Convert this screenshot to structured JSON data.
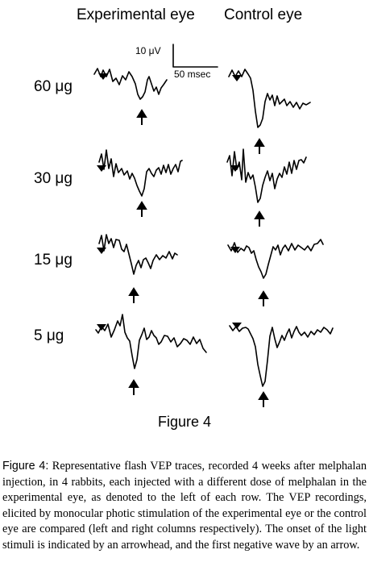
{
  "figure": {
    "col_left": "Experimental eye",
    "col_right": "Control eye",
    "scale": {
      "amplitude": "10 μV",
      "time": "50 msec"
    },
    "rows": [
      {
        "dose": "60 μg"
      },
      {
        "dose": "30 μg"
      },
      {
        "dose": "15 μg"
      },
      {
        "dose": "5 μg"
      }
    ],
    "label": "Figure 4"
  },
  "caption": {
    "label": "Figure 4:",
    "text": " Representative flash VEP traces, recorded 4 weeks after melphalan injection, in 4 rabbits, each injected with a different dose of melphalan in the experimental eye, as denoted to the left of each row. The VEP recordings, elicited by monocular photic stimulation of the experimental eye or the control eye are compared (left and right columns respectively). The onset of the light stimuli is indicated by an arrowhead, and the first negative wave by an arrow."
  }
}
